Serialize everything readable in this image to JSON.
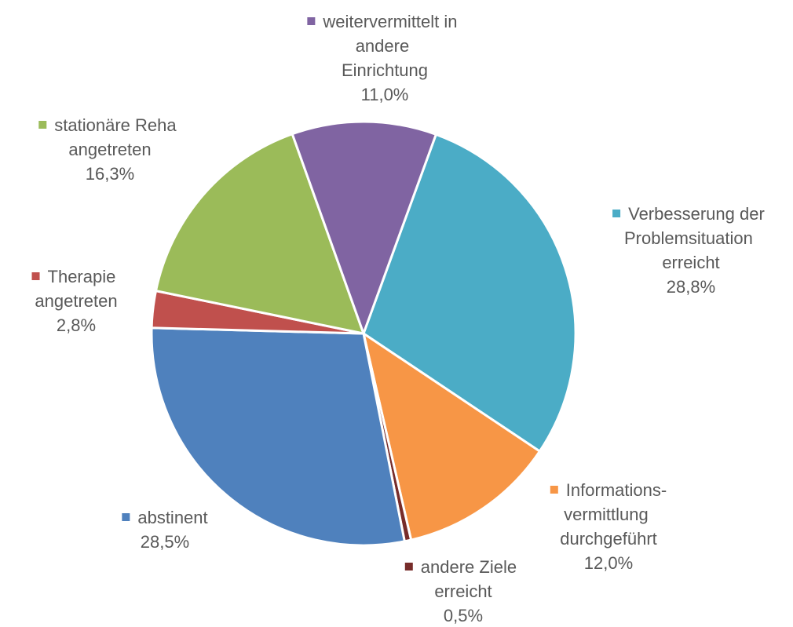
{
  "chart_data": {
    "type": "pie",
    "categories": [
      "Verbesserung der Problemsituation erreicht",
      "Informations-vermittlung durchgeführt",
      "andere Ziele erreicht",
      "abstinent",
      "Therapie angetreten",
      "stationäre Reha angetreten",
      "weitervermittelt in andere Einrichtung"
    ],
    "values": [
      28.8,
      12.0,
      0.5,
      28.5,
      2.8,
      16.3,
      11.0
    ],
    "value_labels": [
      "28,8%",
      "12,0%",
      "0,5%",
      "28,5%",
      "2,8%",
      "16,3%",
      "11,0%"
    ],
    "colors": [
      "#4bacc6",
      "#f79646",
      "#772c2a",
      "#4f81bd",
      "#c0504d",
      "#9bbb59",
      "#8064a2"
    ]
  }
}
